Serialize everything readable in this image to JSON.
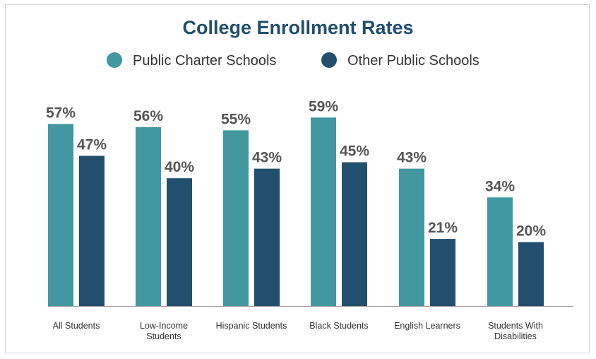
{
  "chart_data": {
    "type": "bar",
    "title": "College Enrollment Rates",
    "categories": [
      [
        "All Students"
      ],
      [
        "Low-Income",
        "Students"
      ],
      [
        "Hispanic Students"
      ],
      [
        "Black Students"
      ],
      [
        "English Learners"
      ],
      [
        "Students With",
        "Disabilities"
      ]
    ],
    "series": [
      {
        "name": "Public Charter Schools",
        "color": "#4297a0",
        "values": [
          57,
          56,
          55,
          59,
          43,
          34
        ],
        "labels": [
          "57%",
          "56%",
          "55%",
          "59%",
          "43%",
          "34%"
        ]
      },
      {
        "name": "Other Public Schools",
        "color": "#214f6d",
        "values": [
          47,
          40,
          43,
          45,
          21,
          20
        ],
        "labels": [
          "47%",
          "40%",
          "43%",
          "45%",
          "21%",
          "20%"
        ]
      }
    ],
    "ylim": [
      0,
      100
    ],
    "legend_position": "top-center",
    "grid": false,
    "colors": {
      "title": "#1f4e6c",
      "text": "#333333",
      "value_label": "#555555",
      "axis": "#999999"
    }
  }
}
